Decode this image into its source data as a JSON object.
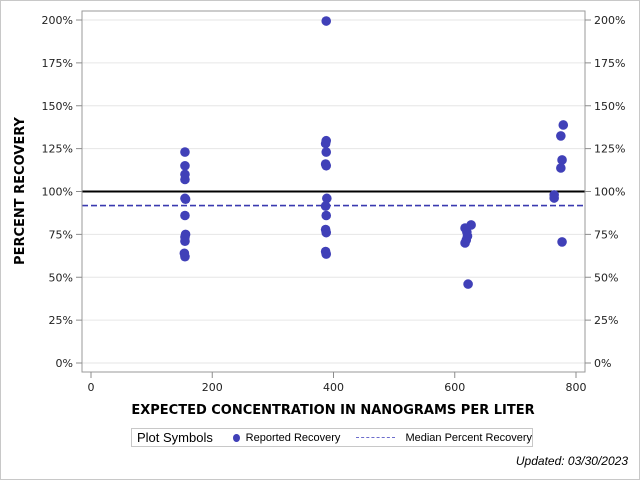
{
  "chart_data": {
    "type": "scatter",
    "title": "",
    "xlabel": "EXPECTED CONCENTRATION IN NANOGRAMS PER LITER",
    "ylabel": "PERCENT RECOVERY",
    "xlim": [
      -15,
      815
    ],
    "ylim": [
      -5,
      205
    ],
    "x_ticks": [
      0,
      200,
      400,
      600,
      800
    ],
    "x_tick_labels": [
      "0",
      "200",
      "400",
      "600",
      "800"
    ],
    "y_ticks": [
      0,
      25,
      50,
      75,
      100,
      125,
      150,
      175,
      200
    ],
    "y_tick_labels": [
      "0%",
      "25%",
      "50%",
      "75%",
      "100%",
      "125%",
      "150%",
      "175%",
      "200%"
    ],
    "grid": true,
    "reference_line": {
      "y": 100,
      "color": "#000000",
      "style": "solid"
    },
    "median_line": {
      "y": 91.8,
      "color": "#3a3ab0",
      "style": "dashed",
      "name": "Median Percent Recovery"
    },
    "series": [
      {
        "name": "Reported Recovery",
        "color": "#4040b8",
        "points": [
          [
            155,
            123
          ],
          [
            155,
            115
          ],
          [
            155,
            110
          ],
          [
            155,
            107
          ],
          [
            155,
            96
          ],
          [
            156,
            95.5
          ],
          [
            155,
            86
          ],
          [
            156,
            75
          ],
          [
            155,
            73.5
          ],
          [
            155,
            71
          ],
          [
            154,
            64
          ],
          [
            155,
            62
          ],
          [
            388,
            199.4
          ],
          [
            388,
            129.6
          ],
          [
            387,
            128
          ],
          [
            388,
            123
          ],
          [
            387,
            116
          ],
          [
            388,
            115
          ],
          [
            389,
            96
          ],
          [
            387,
            91.5
          ],
          [
            388,
            86
          ],
          [
            387,
            77.8
          ],
          [
            388,
            76
          ],
          [
            387,
            65
          ],
          [
            388,
            63.5
          ],
          [
            627,
            80.5
          ],
          [
            617,
            78.7
          ],
          [
            620,
            76.4
          ],
          [
            621,
            74
          ],
          [
            619,
            71.7
          ],
          [
            617,
            70
          ],
          [
            622,
            46
          ],
          [
            779,
            138.8
          ],
          [
            775,
            132.4
          ],
          [
            777,
            118.4
          ],
          [
            775,
            113.7
          ],
          [
            764,
            98
          ],
          [
            764,
            96.2
          ],
          [
            777,
            70.6
          ]
        ]
      }
    ],
    "legend": {
      "title": "Plot Symbols",
      "position": "bottom",
      "entries": [
        "Reported Recovery",
        "Median Percent Recovery"
      ]
    },
    "annotation": "Updated: 03/30/2023"
  },
  "legend": {
    "title": "Plot Symbols",
    "reported": "Reported Recovery",
    "median": "Median Percent Recovery"
  },
  "footer": {
    "updated": "Updated: 03/30/2023"
  },
  "colors": {
    "points": "#4040b8",
    "median": "#3a3ab0",
    "reference": "#000000",
    "grid": "#e6e6e6",
    "axis": "#8c8c8c"
  }
}
